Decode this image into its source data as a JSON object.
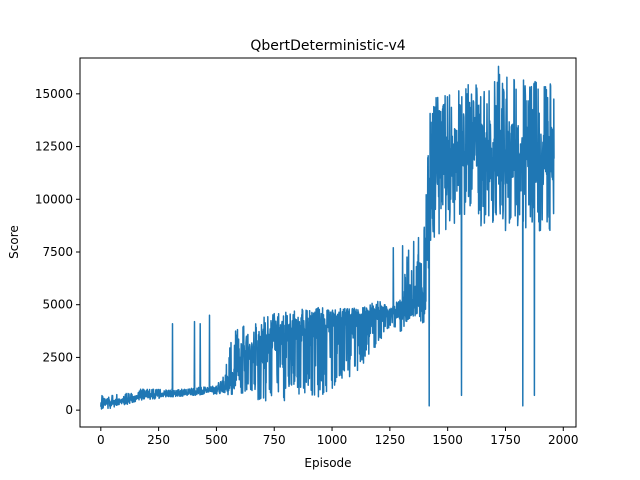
{
  "chart_data": {
    "type": "line",
    "title": "QbertDeterministic-v4",
    "xlabel": "Episode",
    "ylabel": "Score",
    "xlim": [
      -90,
      2055
    ],
    "ylim": [
      -800,
      16700
    ],
    "xticks": [
      0,
      250,
      500,
      750,
      1000,
      1250,
      1500,
      1750,
      2000
    ],
    "xtick_labels": [
      "0",
      "250",
      "500",
      "750",
      "1000",
      "1250",
      "1500",
      "1750",
      "2000"
    ],
    "yticks": [
      0,
      2500,
      5000,
      7500,
      10000,
      12500,
      15000
    ],
    "ytick_labels": [
      "0",
      "2500",
      "5000",
      "7500",
      "10000",
      "12500",
      "15000"
    ],
    "grid": false,
    "legend": "none",
    "series_color": "#1f77b4",
    "x_range": [
      0,
      1960
    ],
    "series": [
      {
        "x": [
          0,
          25,
          50,
          75,
          100,
          125,
          150,
          175,
          200,
          225,
          250,
          275,
          300,
          325,
          350,
          375,
          400,
          425,
          450,
          475,
          500,
          525,
          550,
          575,
          600,
          625,
          650,
          675,
          700,
          725,
          750,
          775,
          800,
          825,
          850,
          875,
          900,
          925,
          950,
          975,
          1000,
          1025,
          1050,
          1075,
          1100,
          1125,
          1150,
          1175,
          1200,
          1225,
          1250,
          1275,
          1300,
          1325,
          1350,
          1375,
          1400,
          1425,
          1450,
          1475,
          1500,
          1525,
          1550,
          1575,
          1600,
          1625,
          1650,
          1675,
          1700,
          1725,
          1750,
          1775,
          1800,
          1825,
          1850,
          1875,
          1900,
          1925,
          1950,
          1960
        ],
        "y": [
          300,
          350,
          400,
          450,
          500,
          550,
          600,
          650,
          700,
          700,
          750,
          750,
          750,
          800,
          800,
          800,
          850,
          850,
          900,
          900,
          950,
          1000,
          1200,
          1600,
          2200,
          2500,
          2700,
          2900,
          3100,
          3200,
          3300,
          3400,
          3500,
          3600,
          3700,
          3800,
          3900,
          4000,
          4100,
          4150,
          4200,
          4250,
          4300,
          4350,
          4400,
          4450,
          4500,
          4550,
          4600,
          4600,
          4650,
          4700,
          4750,
          4800,
          4900,
          5200,
          6000,
          10000,
          11500,
          11800,
          12000,
          12000,
          12100,
          12100,
          12200,
          12300,
          12300,
          12300,
          12400,
          12500,
          12500,
          12500,
          12400,
          12400,
          12300,
          12300,
          12200,
          12000,
          11900,
          11900
        ],
        "lo": [
          0,
          50,
          100,
          200,
          250,
          300,
          400,
          450,
          500,
          500,
          550,
          600,
          600,
          650,
          650,
          650,
          700,
          700,
          750,
          750,
          750,
          800,
          700,
          700,
          600,
          500,
          500,
          500,
          400,
          400,
          400,
          300,
          400,
          500,
          500,
          500,
          600,
          600,
          500,
          700,
          1000,
          1200,
          1300,
          1500,
          1800,
          2000,
          2500,
          2800,
          3000,
          3500,
          4000,
          3800,
          3500,
          4200,
          4500,
          4300,
          4000,
          7500,
          8000,
          8200,
          8500,
          8800,
          8800,
          9000,
          9000,
          8800,
          8500,
          8600,
          8700,
          9000,
          8500,
          8700,
          8200,
          8500,
          8500,
          8600,
          8400,
          8000,
          8200,
          8100
        ],
        "hi": [
          700,
          650,
          700,
          750,
          800,
          900,
          1000,
          1000,
          1000,
          1000,
          1000,
          1000,
          1000,
          1000,
          1000,
          1000,
          1100,
          1100,
          1100,
          1100,
          1200,
          1500,
          2800,
          3800,
          4000,
          4100,
          4200,
          4300,
          4400,
          4500,
          4600,
          4600,
          4700,
          4700,
          4800,
          4800,
          4800,
          4900,
          4900,
          4800,
          4700,
          4800,
          4900,
          4900,
          4800,
          4900,
          5000,
          5100,
          5200,
          5000,
          5000,
          5200,
          5500,
          7900,
          8200,
          8500,
          8800,
          15000,
          15200,
          15300,
          15300,
          15200,
          15300,
          15400,
          15500,
          15500,
          15700,
          15800,
          15900,
          16000,
          15900,
          15800,
          16000,
          15700,
          15800,
          15600,
          15700,
          15600,
          15500,
          15400
        ]
      }
    ],
    "spikes": [
      {
        "x": 310,
        "y": 4100
      },
      {
        "x": 405,
        "y": 4200
      },
      {
        "x": 430,
        "y": 4100
      },
      {
        "x": 470,
        "y": 4500
      },
      {
        "x": 1265,
        "y": 7700
      },
      {
        "x": 1305,
        "y": 7800
      },
      {
        "x": 1420,
        "y": 200
      },
      {
        "x": 1560,
        "y": 700
      },
      {
        "x": 1720,
        "y": 16300
      },
      {
        "x": 1825,
        "y": 200
      },
      {
        "x": 1875,
        "y": 700
      }
    ]
  }
}
